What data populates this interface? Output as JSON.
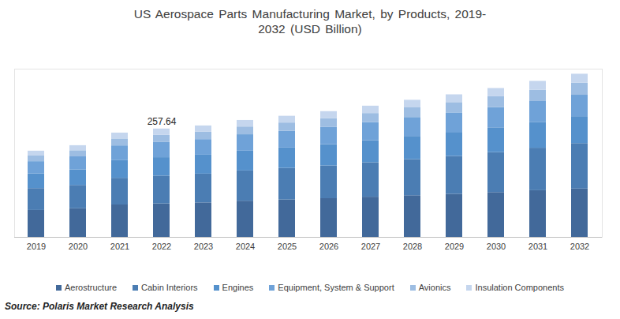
{
  "chart_data": {
    "type": "bar",
    "title": "US Aerospace Parts Manufacturing Market, by Products, 2019-2032 (USD Billion)",
    "caption": "Source: Polaris Market Research Analysis",
    "categories": [
      "2019",
      "2020",
      "2021",
      "2022",
      "2023",
      "2024",
      "2025",
      "2026",
      "2027",
      "2028",
      "2029",
      "2030",
      "2031",
      "2032"
    ],
    "series": [
      {
        "name": "Aerostructure",
        "color": "#42699a",
        "values": [
          64,
          68,
          77,
          79.6,
          82,
          86,
          89,
          92,
          95.5,
          99,
          102.5,
          106.5,
          111,
          115
        ]
      },
      {
        "name": "Cabin Interiors",
        "color": "#4b7db3",
        "values": [
          52,
          55.5,
          63.5,
          66.2,
          68.5,
          72,
          75,
          78,
          82,
          86,
          90,
          95,
          101,
          108
        ]
      },
      {
        "name": "Engines",
        "color": "#5591cc",
        "values": [
          35,
          37,
          42,
          43.7,
          45,
          47,
          48.5,
          50.5,
          52.5,
          55,
          57,
          59,
          61.5,
          64
        ]
      },
      {
        "name": "Equipment, System & Support",
        "color": "#6fa2d8",
        "values": [
          29,
          31,
          35,
          36.1,
          37,
          39,
          40,
          41.5,
          43,
          45,
          46.5,
          48,
          49.5,
          51
        ]
      },
      {
        "name": "Avionics",
        "color": "#9dbde2",
        "values": [
          13.5,
          14.5,
          16.5,
          17.0,
          17.5,
          18.5,
          19.5,
          20.5,
          21.5,
          23,
          24.5,
          26,
          27,
          29
        ]
      },
      {
        "name": "Insulation Components",
        "color": "#c5d6ee",
        "values": [
          11.5,
          12,
          14,
          15.04,
          15,
          15.5,
          16,
          16.5,
          17.5,
          18,
          18.5,
          19.5,
          21,
          21
        ]
      }
    ],
    "annotations": [
      {
        "x": "2022",
        "y": 257.64,
        "text": "257.64"
      }
    ],
    "ylim": [
      0,
      400
    ],
    "stacked": true,
    "grid": false,
    "legend": "bottom",
    "tick_labels": "x"
  }
}
